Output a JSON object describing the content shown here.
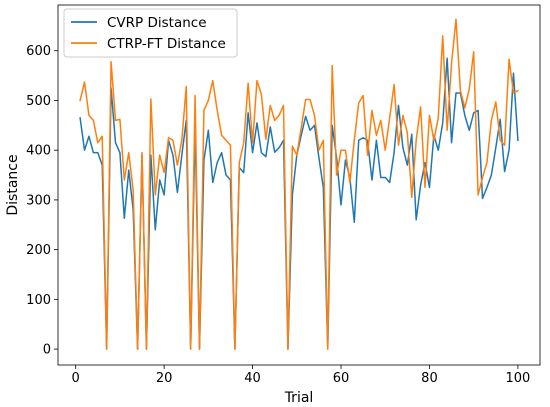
{
  "chart_data": {
    "type": "line",
    "title": "",
    "xlabel": "Trial",
    "ylabel": "Distance",
    "xlim": [
      -4,
      105
    ],
    "ylim": [
      -32,
      692
    ],
    "xticks": [
      0,
      20,
      40,
      60,
      80,
      100
    ],
    "yticks": [
      0,
      100,
      200,
      300,
      400,
      500,
      600
    ],
    "grid": false,
    "legend": "top-left",
    "x": [
      1,
      2,
      3,
      4,
      5,
      6,
      7,
      8,
      9,
      10,
      11,
      12,
      13,
      14,
      15,
      16,
      17,
      18,
      19,
      20,
      21,
      22,
      23,
      24,
      25,
      26,
      27,
      28,
      29,
      30,
      31,
      32,
      33,
      34,
      35,
      36,
      37,
      38,
      39,
      40,
      41,
      42,
      43,
      44,
      45,
      46,
      47,
      48,
      49,
      50,
      51,
      52,
      53,
      54,
      55,
      56,
      57,
      58,
      59,
      60,
      61,
      62,
      63,
      64,
      65,
      66,
      67,
      68,
      69,
      70,
      71,
      72,
      73,
      74,
      75,
      76,
      77,
      78,
      79,
      80,
      81,
      82,
      83,
      84,
      85,
      86,
      87,
      88,
      89,
      90,
      91,
      92,
      93,
      94,
      95,
      96,
      97,
      98,
      99,
      100
    ],
    "series": [
      {
        "name": "CVRP Distance",
        "color": "#1f77b4",
        "values": [
          465,
          400,
          428,
          395,
          395,
          370,
          0,
          525,
          415,
          395,
          263,
          360,
          280,
          0,
          390,
          0,
          390,
          240,
          340,
          310,
          420,
          390,
          315,
          390,
          460,
          0,
          450,
          0,
          380,
          440,
          335,
          375,
          395,
          350,
          340,
          0,
          365,
          355,
          475,
          395,
          455,
          395,
          387,
          447,
          396,
          405,
          420,
          0,
          310,
          390,
          430,
          468,
          440,
          450,
          385,
          325,
          0,
          450,
          385,
          290,
          380,
          345,
          255,
          420,
          425,
          420,
          340,
          420,
          345,
          345,
          335,
          395,
          490,
          405,
          370,
          432,
          260,
          330,
          375,
          325,
          430,
          400,
          455,
          585,
          415,
          515,
          515,
          470,
          440,
          475,
          480,
          303,
          325,
          350,
          405,
          462,
          357,
          400,
          555,
          420
        ]
      },
      {
        "name": "CTRP-FT Distance",
        "color": "#ff7f0e",
        "values": [
          500,
          537,
          470,
          460,
          415,
          428,
          0,
          578,
          460,
          462,
          340,
          395,
          320,
          0,
          395,
          0,
          503,
          310,
          390,
          355,
          425,
          420,
          370,
          420,
          528,
          0,
          510,
          0,
          480,
          500,
          540,
          480,
          430,
          420,
          410,
          0,
          375,
          415,
          535,
          415,
          540,
          512,
          422,
          490,
          460,
          470,
          490,
          0,
          408,
          390,
          445,
          502,
          502,
          470,
          400,
          420,
          0,
          570,
          350,
          400,
          400,
          335,
          420,
          495,
          510,
          390,
          480,
          430,
          460,
          400,
          465,
          532,
          410,
          470,
          435,
          305,
          420,
          487,
          325,
          470,
          420,
          465,
          630,
          440,
          575,
          663,
          520,
          485,
          523,
          598,
          310,
          345,
          375,
          460,
          497,
          420,
          410,
          583,
          515,
          520
        ]
      }
    ]
  }
}
